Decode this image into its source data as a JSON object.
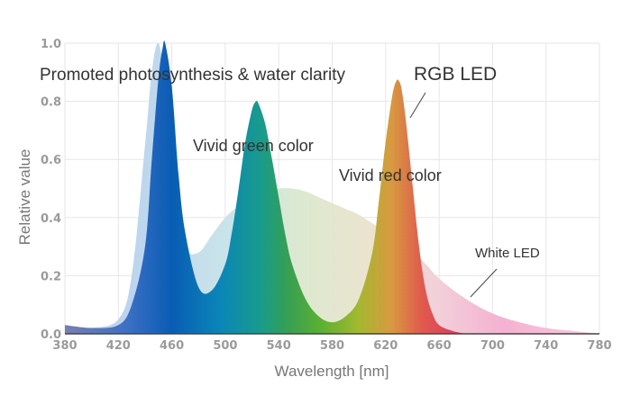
{
  "chart_data": {
    "type": "area",
    "title": "",
    "xlabel": "Wavelength [nm]",
    "ylabel": "Relative value",
    "xlim": [
      380,
      780
    ],
    "ylim": [
      0,
      1.0
    ],
    "x_ticks": [
      "380",
      "420",
      "460",
      "500",
      "540",
      "580",
      "620",
      "660",
      "700",
      "740",
      "780"
    ],
    "y_ticks": [
      "0.0",
      "0.2",
      "0.4",
      "0.6",
      "0.8",
      "1.0"
    ],
    "grid": true,
    "series": [
      {
        "name": "White LED",
        "x": [
          380,
          400,
          420,
          430,
          440,
          445,
          450,
          455,
          460,
          470,
          480,
          490,
          500,
          510,
          520,
          530,
          540,
          550,
          560,
          570,
          580,
          590,
          600,
          610,
          620,
          630,
          640,
          650,
          660,
          680,
          700,
          720,
          740,
          760,
          780
        ],
        "y": [
          0.02,
          0.02,
          0.05,
          0.2,
          0.65,
          0.9,
          1.0,
          0.85,
          0.5,
          0.3,
          0.28,
          0.34,
          0.4,
          0.44,
          0.47,
          0.49,
          0.5,
          0.5,
          0.49,
          0.47,
          0.45,
          0.43,
          0.41,
          0.38,
          0.35,
          0.32,
          0.28,
          0.24,
          0.19,
          0.12,
          0.07,
          0.04,
          0.02,
          0.01,
          0.0
        ]
      },
      {
        "name": "RGB LED",
        "x": [
          380,
          400,
          420,
          430,
          440,
          445,
          450,
          453,
          455,
          460,
          465,
          470,
          480,
          490,
          500,
          505,
          510,
          515,
          520,
          523,
          525,
          530,
          535,
          540,
          545,
          550,
          560,
          570,
          580,
          590,
          600,
          610,
          615,
          620,
          625,
          628,
          630,
          632,
          635,
          640,
          645,
          650,
          655,
          660,
          670,
          680
        ],
        "y": [
          0.03,
          0.02,
          0.03,
          0.1,
          0.3,
          0.6,
          0.88,
          0.98,
          1.0,
          0.85,
          0.55,
          0.35,
          0.16,
          0.15,
          0.24,
          0.35,
          0.5,
          0.66,
          0.77,
          0.8,
          0.79,
          0.72,
          0.6,
          0.47,
          0.34,
          0.24,
          0.12,
          0.06,
          0.04,
          0.06,
          0.12,
          0.28,
          0.46,
          0.66,
          0.82,
          0.87,
          0.87,
          0.84,
          0.74,
          0.52,
          0.3,
          0.15,
          0.07,
          0.03,
          0.01,
          0.0
        ]
      }
    ],
    "annotations": {
      "blue_peak": "Promoted photosynthesis & water clarity",
      "green_peak": "Vivid green color",
      "red_peak": "Vivid red color",
      "rgb_led": "RGB LED",
      "white_led": "White LED"
    }
  }
}
